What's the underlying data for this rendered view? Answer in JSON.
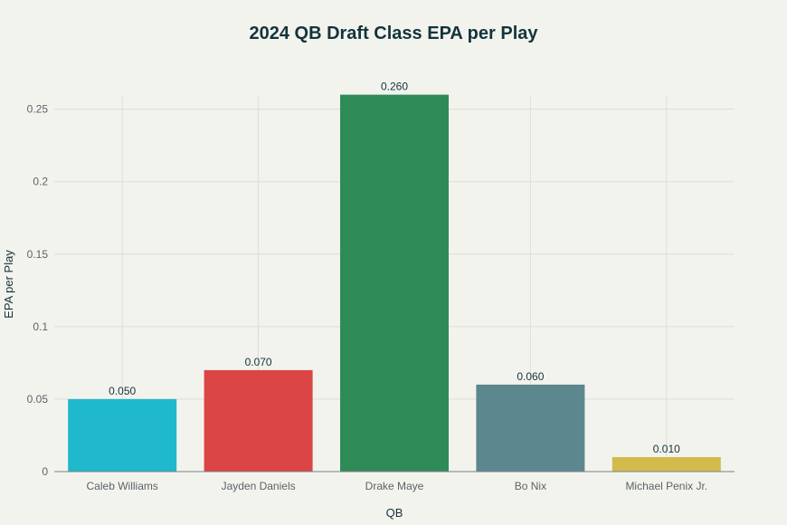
{
  "chart_data": {
    "type": "bar",
    "title": "2024 QB Draft Class EPA per Play",
    "xlabel": "QB",
    "ylabel": "EPA per Play",
    "categories": [
      "Caleb Williams",
      "Jayden Daniels",
      "Drake Maye",
      "Bo Nix",
      "Michael Penix Jr."
    ],
    "values": [
      0.05,
      0.07,
      0.26,
      0.06,
      0.01
    ],
    "data_labels": [
      "0.050",
      "0.070",
      "0.260",
      "0.060",
      "0.010"
    ],
    "colors": [
      "#1FB8CD",
      "#DB4545",
      "#2E8B57",
      "#5D878F",
      "#D2BA4C"
    ],
    "ylim": [
      0,
      0.2585
    ],
    "yticks": [
      0,
      0.05,
      0.1,
      0.15,
      0.2,
      0.25
    ],
    "ytick_labels": [
      "0",
      "0.05",
      "0.1",
      "0.15",
      "0.2",
      "0.25"
    ],
    "grid": true,
    "legend": "none"
  }
}
